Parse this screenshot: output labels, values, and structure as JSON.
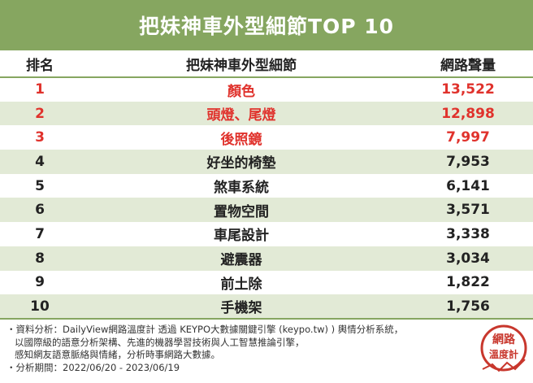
{
  "title": "把妹神車外型細節TOP 10",
  "table": {
    "headers": [
      "排名",
      "把妹神車外型細節",
      "網路聲量"
    ],
    "rows": [
      {
        "rank": "1",
        "item": "顏色",
        "volume": "13,522"
      },
      {
        "rank": "2",
        "item": "頭燈、尾燈",
        "volume": "12,898"
      },
      {
        "rank": "3",
        "item": "後照鏡",
        "volume": "7,997"
      },
      {
        "rank": "4",
        "item": "好坐的椅墊",
        "volume": "7,953"
      },
      {
        "rank": "5",
        "item": "煞車系統",
        "volume": "6,141"
      },
      {
        "rank": "6",
        "item": "置物空間",
        "volume": "3,571"
      },
      {
        "rank": "7",
        "item": "車尾設計",
        "volume": "3,338"
      },
      {
        "rank": "8",
        "item": "避震器",
        "volume": "3,034"
      },
      {
        "rank": "9",
        "item": "前土除",
        "volume": "1,822"
      },
      {
        "rank": "10",
        "item": "手機架",
        "volume": "1,756"
      }
    ]
  },
  "footer": {
    "line1": "・資料分析：DailyView網路溫度計 透過 KEYPO大數據關鍵引擎 (keypo.tw) ) 輿情分析系統，",
    "line2": "以國際級的語意分析架構、先進的機器學習技術與人工智慧推論引擎，",
    "line3": "感知網友語意脈絡與情緒，分析時事網路大數據。",
    "line4": "・分析期間：2022/06/20 - 2023/06/19"
  },
  "logo": {
    "line1": "網路",
    "line2": "溫度計",
    "color": "#c8372d"
  },
  "colors": {
    "accent": "#86a660",
    "stripe": "#e2ead6",
    "highlight": "#e0322c"
  }
}
